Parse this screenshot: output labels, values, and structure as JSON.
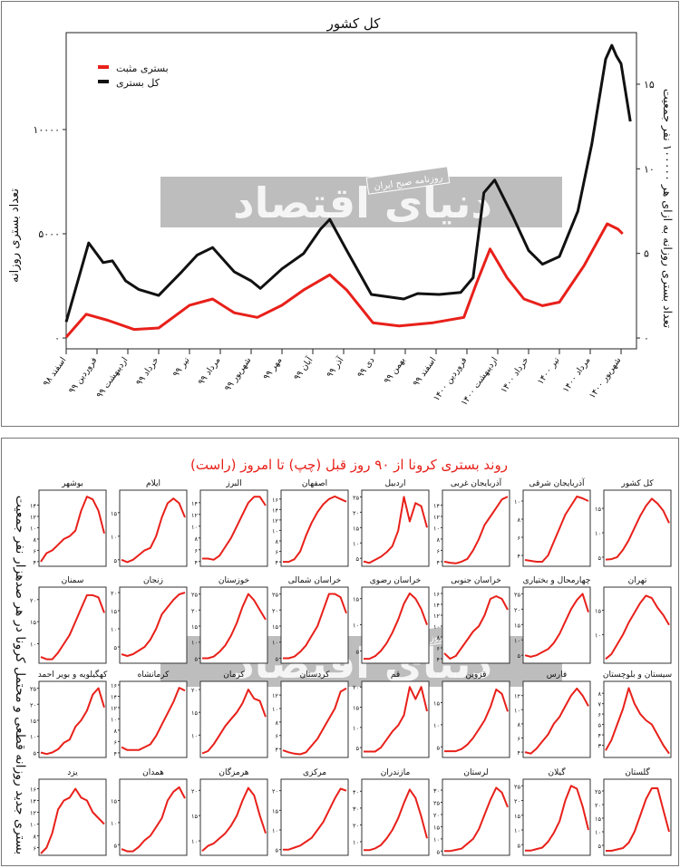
{
  "colors": {
    "red": "#e8201a",
    "black": "#111111",
    "watermark": "#bdbdbd"
  },
  "watermark": {
    "tagline": "روزنامه صبح ایران",
    "logo": "دنیای اقتصاد"
  },
  "chart_data": [
    {
      "type": "line",
      "title": "کل کشور",
      "ylabel": "تعداد بستری روزانه",
      "y2label": "تعداد بستری روزانه به ازای هر ۱۰۰۰۰۰ نفر جمعیت",
      "xlabel": "",
      "categories": [
        "اسفند ۹۸",
        "فروردین ۹۹",
        "اردیبهشت ۹۹",
        "خرداد ۹۹",
        "تیر ۹۹",
        "مرداد ۹۹",
        "شهریور ۹۹",
        "مهر ۹۹",
        "آبان ۹۹",
        "آذر ۹۹",
        "دی ۹۹",
        "بهمن ۹۹",
        "اسفند ۹۹",
        "فروردین ۱۴۰۰",
        "اردیبهشت ۱۴۰۰",
        "خرداد ۱۴۰۰",
        "تیر ۱۴۰۰",
        "مرداد ۱۴۰۰",
        "شهریور ۱۴۰۰"
      ],
      "yticks": [
        0,
        5000,
        10000
      ],
      "yticks_labels": [
        "۰",
        "۵۰۰۰",
        "۱۰۰۰۰"
      ],
      "y2ticks": [
        0,
        5,
        10,
        15
      ],
      "y2ticks_labels": [
        "۰",
        "۵",
        "۱۰",
        "۱۵"
      ],
      "ylim": [
        -520,
        14650
      ],
      "y2lim": [
        -0.64,
        18.05
      ],
      "legend_position": "top-left",
      "series": [
        {
          "name": "بستری مثبت",
          "color": "#e8201a",
          "x": [
            0,
            0.65,
            1.35,
            2.2,
            3.0,
            4.0,
            4.75,
            5.45,
            6.2,
            7.0,
            7.7,
            8.55,
            9.1,
            9.95,
            10.8,
            11.9,
            12.9,
            13.3,
            13.75,
            14.3,
            14.85,
            15.45,
            16.0,
            16.8,
            17.55,
            17.9,
            18.05
          ],
          "y": [
            40,
            1140,
            850,
            410,
            480,
            1570,
            1870,
            1210,
            990,
            1570,
            2300,
            3030,
            2300,
            730,
            580,
            730,
            990,
            2590,
            4270,
            2890,
            1870,
            1550,
            1720,
            3470,
            5480,
            5220,
            5000
          ]
        },
        {
          "name": "کل بستری",
          "color": "#111111",
          "x": [
            0,
            0.73,
            1.2,
            1.5,
            1.93,
            2.35,
            3.0,
            3.75,
            4.25,
            4.75,
            5.45,
            6.0,
            6.3,
            7.0,
            7.7,
            8.25,
            8.55,
            9.1,
            9.9,
            10.95,
            11.4,
            12.1,
            12.8,
            13.2,
            13.55,
            13.9,
            14.5,
            15.0,
            15.45,
            16.0,
            16.6,
            17.05,
            17.5,
            17.7,
            17.85,
            18.0,
            18.3
          ],
          "y": [
            770,
            4560,
            3620,
            3700,
            2740,
            2330,
            2040,
            3180,
            3980,
            4340,
            3180,
            2740,
            2380,
            3320,
            4050,
            5220,
            5690,
            4200,
            2090,
            1870,
            2130,
            2090,
            2190,
            2890,
            6970,
            7580,
            5800,
            4200,
            3540,
            3910,
            6090,
            9300,
            13380,
            14040,
            13530,
            13160,
            10390
          ]
        }
      ]
    },
    {
      "type": "line",
      "title": "روند بستری کرونا از ۹۰ روز قبل (چپ) تا امروز (راست)",
      "ylabel": "بستری جدید روزانه قطعی و محتمل کرونا در هر صدهزار نفر جمعیت",
      "panels": [
        {
          "name": "کل کشور",
          "yticks": [
            5,
            10,
            15
          ],
          "ylim": [
            3.5,
            18
          ],
          "values": [
            4.5,
            4.6,
            5,
            6.5,
            8.5,
            11,
            13.5,
            15.5,
            17,
            16,
            14.5,
            12
          ]
        },
        {
          "name": "آذربایجان شرقی",
          "yticks": [
            4,
            6,
            8,
            10
          ],
          "ylim": [
            3,
            10.8
          ],
          "values": [
            3.5,
            3.4,
            3.3,
            3.3,
            4,
            5.5,
            7,
            8.5,
            9.5,
            10.5,
            10.3,
            10
          ]
        },
        {
          "name": "آذربایجان غربی",
          "yticks": [
            4,
            6,
            8,
            10,
            12,
            14
          ],
          "ylim": [
            3.5,
            16
          ],
          "values": [
            4,
            3.8,
            3.7,
            4,
            4.5,
            6,
            8,
            10.5,
            12,
            13.5,
            15,
            15.5
          ]
        },
        {
          "name": "اردبیل",
          "yticks": [
            5,
            10,
            15,
            20,
            25
          ],
          "ylim": [
            3,
            26
          ],
          "values": [
            4,
            3.5,
            4.5,
            5.5,
            7,
            9,
            14,
            25,
            17,
            23,
            22,
            15
          ]
        },
        {
          "name": "اصفهان",
          "yticks": [
            4,
            6,
            8,
            10,
            12,
            14,
            16
          ],
          "ylim": [
            3.5,
            17
          ],
          "values": [
            4,
            4,
            4.5,
            6,
            9,
            11.5,
            13.5,
            15,
            16,
            16.5,
            16,
            15.5
          ]
        },
        {
          "name": "البرز",
          "yticks": [
            4,
            6,
            8,
            10,
            12,
            14
          ],
          "ylim": [
            3.5,
            15.5
          ],
          "values": [
            4.5,
            4.5,
            4.3,
            5,
            6.5,
            8,
            10,
            12,
            14,
            15,
            15,
            13.5
          ]
        },
        {
          "name": "ایلام",
          "yticks": [
            5,
            10,
            15
          ],
          "ylim": [
            4,
            19
          ],
          "values": [
            5,
            4.5,
            5,
            6,
            7,
            7.5,
            10,
            14,
            17,
            18,
            17,
            14
          ]
        },
        {
          "name": "بوشهر",
          "yticks": [
            4,
            6,
            8,
            10,
            12,
            14
          ],
          "ylim": [
            3.5,
            16
          ],
          "values": [
            4,
            5.5,
            6,
            7,
            8,
            8.5,
            9.5,
            13,
            15.5,
            15,
            13,
            9
          ]
        },
        {
          "name": "تهران",
          "yticks": [
            10,
            15
          ],
          "ylim": [
            4.5,
            19
          ],
          "values": [
            5,
            6,
            8,
            10,
            12.5,
            14.5,
            16.5,
            18,
            17.5,
            15.5,
            14,
            12
          ]
        },
        {
          "name": "چهارمحال و بختیاری",
          "yticks": [
            5,
            10,
            15,
            20,
            25
          ],
          "ylim": [
            3,
            26
          ],
          "values": [
            5,
            4.5,
            5,
            6,
            7,
            9,
            12,
            16,
            20,
            23,
            25,
            19
          ]
        },
        {
          "name": "خراسان جنوبی",
          "yticks": [
            4,
            6,
            8,
            10,
            12,
            14,
            16
          ],
          "ylim": [
            3.5,
            16.5
          ],
          "values": [
            5,
            4,
            4.5,
            6,
            7.5,
            9,
            10,
            12,
            15,
            15.5,
            15,
            13
          ]
        },
        {
          "name": "خراسان رضوی",
          "yticks": [
            5,
            10,
            15
          ],
          "ylim": [
            3,
            16.5
          ],
          "values": [
            3.5,
            3.5,
            4,
            5,
            6.5,
            8.5,
            11,
            14,
            16,
            15,
            13,
            10
          ]
        },
        {
          "name": "خراسان شمالی",
          "yticks": [
            5,
            10,
            15,
            20,
            25
          ],
          "ylim": [
            4,
            26
          ],
          "values": [
            5,
            5,
            5.5,
            7,
            9,
            12,
            15,
            20,
            25,
            25,
            24,
            19
          ]
        },
        {
          "name": "خوزستان",
          "yticks": [
            5,
            10,
            15,
            20,
            25
          ],
          "ylim": [
            4,
            26
          ],
          "values": [
            5,
            5,
            5.5,
            7,
            9,
            12,
            16,
            21,
            25,
            23,
            20,
            17
          ]
        },
        {
          "name": "زنجان",
          "yticks": [
            5,
            10,
            15,
            20
          ],
          "ylim": [
            1,
            20.5
          ],
          "values": [
            3,
            2.5,
            3,
            4,
            5,
            7,
            10,
            14,
            16,
            18,
            19.5,
            20
          ]
        },
        {
          "name": "سمنان",
          "yticks": [
            10,
            15,
            20
          ],
          "ylim": [
            6,
            22
          ],
          "values": [
            7,
            6.5,
            6.5,
            8,
            10,
            12,
            15,
            18,
            21,
            21,
            20.5,
            17
          ]
        },
        {
          "name": "سیستان و بلوچستان",
          "yticks": [
            3,
            4,
            5,
            6,
            7,
            8
          ],
          "ylim": [
            2,
            8.8
          ],
          "values": [
            2.5,
            3.5,
            5,
            6.5,
            8.5,
            7,
            6,
            5.4,
            5,
            4,
            3,
            2.2
          ]
        },
        {
          "name": "فارس",
          "yticks": [
            4,
            6,
            8,
            10,
            12
          ],
          "ylim": [
            3.5,
            13.5
          ],
          "values": [
            4,
            3.8,
            4.5,
            5.5,
            6.5,
            8,
            9,
            10.5,
            12,
            13,
            12,
            10.5
          ]
        },
        {
          "name": "قزوین",
          "yticks": [
            5,
            10,
            15
          ],
          "ylim": [
            3,
            19
          ],
          "values": [
            4,
            4,
            4,
            4.5,
            5.5,
            7,
            9,
            11,
            14,
            18,
            17,
            13
          ]
        },
        {
          "name": "قم",
          "yticks": [
            5,
            10,
            15,
            20
          ],
          "ylim": [
            3,
            20.5
          ],
          "values": [
            4,
            4,
            4,
            5,
            7,
            9,
            10.5,
            13,
            20,
            17,
            20,
            14
          ]
        },
        {
          "name": "کردستان",
          "yticks": [
            4,
            6,
            8,
            10,
            12
          ],
          "ylim": [
            3,
            13.5
          ],
          "values": [
            3.8,
            3.5,
            3.3,
            3.2,
            3.5,
            4.5,
            5.5,
            7,
            8.5,
            10,
            12.5,
            13
          ]
        },
        {
          "name": "کرمان",
          "yticks": [
            10,
            15,
            20
          ],
          "ylim": [
            5.5,
            21
          ],
          "values": [
            6,
            6.5,
            8,
            10,
            12,
            13.5,
            15,
            17,
            20,
            18,
            17.5,
            14
          ]
        },
        {
          "name": "کرمانشاه",
          "yticks": [
            4,
            6,
            8,
            10,
            12,
            14,
            16
          ],
          "ylim": [
            3.5,
            16
          ],
          "values": [
            5,
            4.5,
            4.5,
            4.5,
            5,
            5.5,
            7,
            9,
            11,
            13,
            15.5,
            15
          ]
        },
        {
          "name": "کهگیلویه و بویر احمد",
          "yticks": [
            5,
            10,
            15,
            20,
            25
          ],
          "ylim": [
            4,
            26
          ],
          "values": [
            5,
            4.5,
            5,
            6,
            8,
            9,
            13,
            15,
            18,
            23,
            25,
            19
          ]
        },
        {
          "name": "گلستان",
          "yticks": [
            5,
            10,
            15,
            20,
            25
          ],
          "ylim": [
            2,
            28
          ],
          "values": [
            3,
            3,
            3.5,
            4,
            6,
            10,
            16,
            22,
            26,
            26,
            18,
            10
          ]
        },
        {
          "name": "گیلان",
          "yticks": [
            5,
            10,
            15,
            20,
            25
          ],
          "ylim": [
            2,
            26
          ],
          "values": [
            3,
            3,
            3.5,
            4,
            6,
            9,
            13,
            20,
            25,
            24,
            18,
            10
          ]
        },
        {
          "name": "لرستان",
          "yticks": [
            5,
            10,
            15,
            20,
            25,
            30
          ],
          "ylim": [
            4,
            33
          ],
          "values": [
            5,
            5,
            5.5,
            6,
            8,
            10,
            14,
            20,
            26,
            31,
            29,
            23
          ]
        },
        {
          "name": "مازندران",
          "yticks": [
            10,
            20,
            30,
            40
          ],
          "ylim": [
            3,
            45
          ],
          "values": [
            5,
            5,
            6,
            8,
            12,
            17,
            24,
            33,
            41,
            36,
            25,
            12
          ]
        },
        {
          "name": "مرکزی",
          "yticks": [
            5,
            10,
            15,
            20
          ],
          "ylim": [
            4,
            22
          ],
          "values": [
            5,
            5,
            5.5,
            6,
            7,
            8,
            10,
            12,
            15,
            18,
            20.5,
            20
          ]
        },
        {
          "name": "هرمزگان",
          "yticks": [
            10,
            15,
            20
          ],
          "ylim": [
            7.5,
            21.5
          ],
          "values": [
            8,
            9,
            9.5,
            10.5,
            11.5,
            13,
            15,
            18,
            20.5,
            19,
            15,
            11.5
          ]
        },
        {
          "name": "همدان",
          "yticks": [
            5,
            10,
            15
          ],
          "ylim": [
            3,
            19
          ],
          "values": [
            4,
            3.5,
            3.5,
            4.5,
            6,
            7,
            9,
            11,
            15,
            17,
            18,
            15.5
          ]
        },
        {
          "name": "یزد",
          "yticks": [
            6,
            8,
            10,
            12,
            14,
            16
          ],
          "ylim": [
            5,
            17
          ],
          "values": [
            5,
            6,
            8.5,
            12.5,
            14,
            14.5,
            16,
            14.5,
            14,
            12,
            11,
            10
          ]
        }
      ]
    }
  ]
}
